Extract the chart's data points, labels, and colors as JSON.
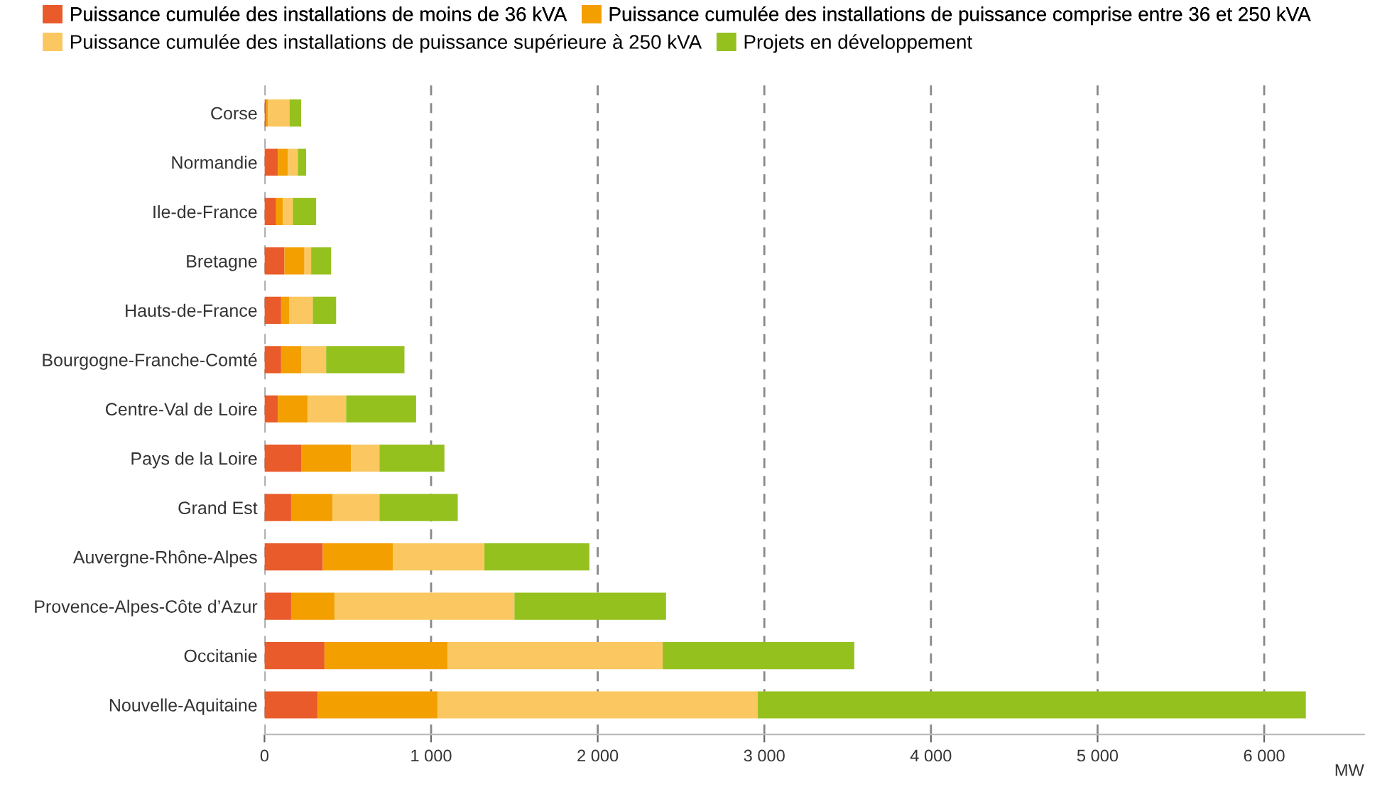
{
  "chart_data": {
    "type": "bar",
    "orientation": "horizontal",
    "stacked": true,
    "categories": [
      "Corse",
      "Normandie",
      "Ile-de-France",
      "Bretagne",
      "Hauts-de-France",
      "Bourgogne-Franche-Comté",
      "Centre-Val de Loire",
      "Pays de la Loire",
      "Grand Est",
      "Auvergne-Rhône-Alpes",
      "Provence-Alpes-Côte d’Azur",
      "Occitanie",
      "Nouvelle-Aquitaine"
    ],
    "series": [
      {
        "name": "Puissance cumulée des installations de moins de 36 kVA",
        "color": "#e95b2b",
        "values": [
          10,
          80,
          70,
          120,
          100,
          100,
          80,
          220,
          160,
          350,
          160,
          360,
          320
        ]
      },
      {
        "name": "Puissance cumulée des installations de puissance comprise entre 36 et 250 kVA",
        "color": "#f49f00",
        "values": [
          10,
          60,
          40,
          120,
          50,
          120,
          180,
          300,
          250,
          420,
          260,
          740,
          720
        ]
      },
      {
        "name": "Puissance cumulée des installations de puissance supérieure à 250 kVA",
        "color": "#fbc760",
        "values": [
          130,
          60,
          60,
          40,
          140,
          150,
          230,
          170,
          280,
          550,
          1080,
          1290,
          1920
        ]
      },
      {
        "name": "Projets en développement",
        "color": "#95c11f",
        "values": [
          70,
          50,
          140,
          120,
          140,
          470,
          420,
          390,
          470,
          630,
          910,
          1150,
          3290
        ]
      }
    ],
    "xlabel": "MW",
    "xlim": [
      0,
      6600
    ],
    "xticks": [
      {
        "value": 0,
        "label": "0"
      },
      {
        "value": 1000,
        "label": "1 000"
      },
      {
        "value": 2000,
        "label": "2 000"
      },
      {
        "value": 3000,
        "label": "3 000"
      },
      {
        "value": 4000,
        "label": "4 000"
      },
      {
        "value": 5000,
        "label": "5 000"
      },
      {
        "value": 6000,
        "label": "6 000"
      }
    ],
    "grid": "x",
    "legend": "top"
  }
}
